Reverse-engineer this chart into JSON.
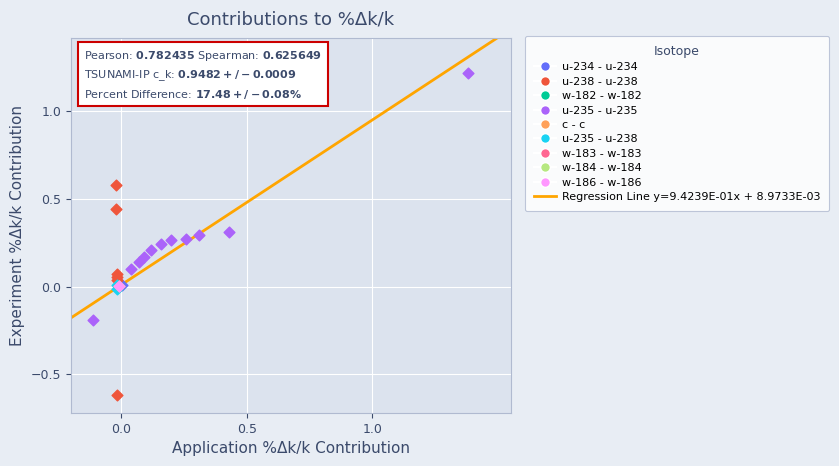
{
  "title": "Contributions to %Δk/k",
  "xlabel": "Application %Δk/k Contribution",
  "ylabel": "Experiment %Δk/k Contribution",
  "bg_color": "#E8EDF4",
  "plot_bg_color": "#DCE3EE",
  "regression_slope": 0.94239,
  "regression_intercept": 0.0089733,
  "regression_label": "Regression Line y=9.4239E-01x + 8.9733E-03",
  "regression_color": "#FFA500",
  "xlim": [
    -0.2,
    1.55
  ],
  "ylim": [
    -0.72,
    1.42
  ],
  "xticks": [
    0.0,
    0.5,
    1.0
  ],
  "yticks": [
    -0.5,
    0.0,
    0.5,
    1.0
  ],
  "isotopes": {
    "u-234 - u-234": {
      "color": "#636EFA",
      "data": [
        [
          0.005,
          0.008
        ]
      ]
    },
    "u-238 - u-238": {
      "color": "#EF553B",
      "data": [
        [
          -0.02,
          0.58
        ],
        [
          -0.02,
          0.44
        ],
        [
          -0.015,
          0.07
        ],
        [
          -0.015,
          0.055
        ],
        [
          -0.015,
          0.04
        ],
        [
          -0.015,
          -0.62
        ]
      ]
    },
    "w-182 - w-182": {
      "color": "#00CC96",
      "data": [
        [
          -0.008,
          0.005
        ]
      ]
    },
    "u-235 - u-235": {
      "color": "#AB63FA",
      "data": [
        [
          -0.11,
          -0.19
        ],
        [
          0.04,
          0.1
        ],
        [
          0.07,
          0.14
        ],
        [
          0.09,
          0.17
        ],
        [
          0.12,
          0.21
        ],
        [
          0.16,
          0.24
        ],
        [
          0.2,
          0.265
        ],
        [
          0.26,
          0.27
        ],
        [
          0.31,
          0.295
        ],
        [
          0.43,
          0.31
        ],
        [
          1.38,
          1.22
        ]
      ]
    },
    "c - c": {
      "color": "#FFA15A",
      "data": [
        [
          -0.008,
          0.003
        ]
      ]
    },
    "u-235 - u-238": {
      "color": "#19D3F3",
      "data": [
        [
          -0.018,
          0.008
        ],
        [
          -0.018,
          -0.015
        ]
      ]
    },
    "w-183 - w-183": {
      "color": "#FF6692",
      "data": [
        [
          -0.008,
          0.002
        ]
      ]
    },
    "w-184 - w-184": {
      "color": "#B6E880",
      "data": [
        [
          -0.007,
          0.001
        ]
      ]
    },
    "w-186 - w-186": {
      "color": "#FF97FF",
      "data": [
        [
          -0.007,
          0.002
        ]
      ]
    }
  },
  "legend_title": "Isotope",
  "title_fontsize": 13,
  "axis_label_fontsize": 11,
  "axis_label_color": "#3B4A6B",
  "tick_color": "#3B4A6B",
  "grid_color": "#FFFFFF",
  "annotation_box_color": "#FFFFFF",
  "annotation_border_color": "#CC0000"
}
